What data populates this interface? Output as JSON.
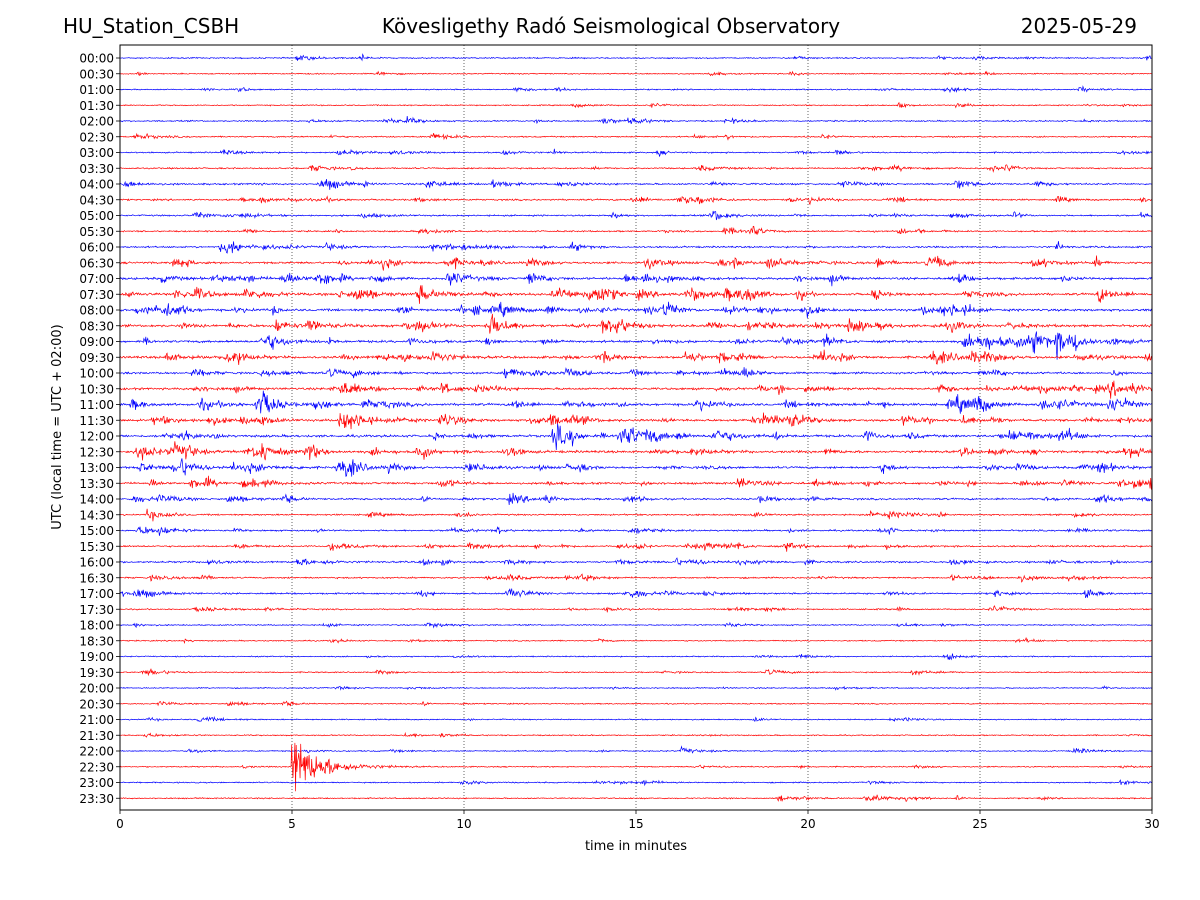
{
  "header": {
    "station": "HU_Station_CSBH",
    "title": "Kövesligethy Radó Seismological Observatory",
    "date": "2025-05-29"
  },
  "chart_data": {
    "type": "line",
    "subtype": "helicorder",
    "xlabel": "time in minutes",
    "ylabel": "UTC (local time = UTC + 02:00)",
    "xlim": [
      0,
      30
    ],
    "xticks": [
      "0",
      "5",
      "10",
      "15",
      "20",
      "25",
      "30"
    ],
    "vertical_grid_minutes": [
      5,
      10,
      15,
      20,
      25
    ],
    "grid": "dotted vertical",
    "row_labels": [
      "00:00",
      "00:30",
      "01:00",
      "01:30",
      "02:00",
      "02:30",
      "03:00",
      "03:30",
      "04:00",
      "04:30",
      "05:00",
      "05:30",
      "06:00",
      "06:30",
      "07:00",
      "07:30",
      "08:00",
      "08:30",
      "09:00",
      "09:30",
      "10:00",
      "10:30",
      "11:00",
      "11:30",
      "12:00",
      "12:30",
      "13:00",
      "13:30",
      "14:00",
      "14:30",
      "15:00",
      "15:30",
      "16:00",
      "16:30",
      "17:00",
      "17:30",
      "18:00",
      "18:30",
      "19:00",
      "19:30",
      "20:00",
      "20:30",
      "21:00",
      "21:30",
      "22:00",
      "22:30",
      "23:00",
      "23:30"
    ],
    "trace_colors": [
      "#0000ff",
      "#ff0000"
    ],
    "noise_level_by_row": [
      0.25,
      0.2,
      0.25,
      0.2,
      0.3,
      0.3,
      0.35,
      0.4,
      0.55,
      0.5,
      0.45,
      0.4,
      0.55,
      0.8,
      0.9,
      1.0,
      1.0,
      1.0,
      1.0,
      1.0,
      0.8,
      0.85,
      1.0,
      0.95,
      1.0,
      1.0,
      0.85,
      0.8,
      0.65,
      0.45,
      0.5,
      0.55,
      0.6,
      0.45,
      0.55,
      0.3,
      0.2,
      0.2,
      0.2,
      0.2,
      0.2,
      0.2,
      0.2,
      0.2,
      0.2,
      0.2,
      0.25,
      0.25
    ],
    "events": [
      {
        "row": "22:30",
        "start_minute": 5.0,
        "peak_amplitude": "large",
        "duration_minutes": 4.0
      },
      {
        "row": "23:30",
        "start_minute": 22.8,
        "peak_amplitude": "small",
        "duration_minutes": 0.8
      }
    ]
  }
}
